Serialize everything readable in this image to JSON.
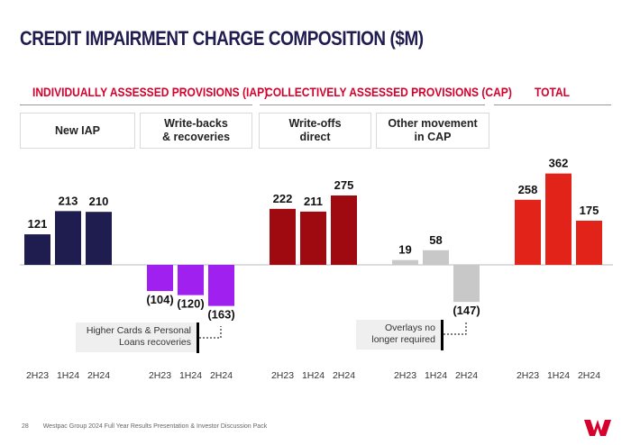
{
  "header": {
    "title": "CREDIT IMPAIRMENT CHARGE COMPOSITION ($M)"
  },
  "sections": [
    {
      "label": "INDIVIDUALLY ASSESSED PROVISIONS (IAP)"
    },
    {
      "label": "COLLECTIVELY ASSESSED PROVISIONS (CAP)"
    },
    {
      "label": "TOTAL"
    }
  ],
  "categories": [
    {
      "label_lines": [
        "New IAP"
      ]
    },
    {
      "label_lines": [
        "Write-backs",
        "& recoveries"
      ]
    },
    {
      "label_lines": [
        "Write-offs",
        "direct"
      ]
    },
    {
      "label_lines": [
        "Other movement",
        "in CAP"
      ]
    }
  ],
  "notes": [
    {
      "lines": [
        "Higher Cards & Personal",
        "Loans recoveries"
      ]
    },
    {
      "lines": [
        "Overlays no",
        "longer required"
      ]
    }
  ],
  "footer": {
    "page_number": "28",
    "text": "Westpac Group 2024 Full Year Results Presentation & Investor Discussion Pack"
  },
  "colors": {
    "title": "#1f1c4f",
    "section": "#d5002b",
    "navy": "#1f1c4f",
    "purple": "#a020f0",
    "darkred": "#9e0a10",
    "grey": "#c8c8c8",
    "red": "#e2231a"
  },
  "chart_data": {
    "type": "bar",
    "title": "CREDIT IMPAIRMENT CHARGE COMPOSITION ($M)",
    "periods": [
      "2H23",
      "1H24",
      "2H24"
    ],
    "ylim": [
      -180,
      380
    ],
    "grid": false,
    "legend": "none",
    "series": [
      {
        "name": "New IAP",
        "group": "IAP",
        "color": "#1f1c4f",
        "values": [
          121,
          213,
          210
        ],
        "labels": [
          "121",
          "213",
          "210"
        ]
      },
      {
        "name": "Write-backs & recoveries",
        "group": "IAP",
        "color": "#a020f0",
        "values": [
          -104,
          -120,
          -163
        ],
        "labels": [
          "(104)",
          "(120)",
          "(163)"
        ]
      },
      {
        "name": "Write-offs direct",
        "group": "CAP",
        "color": "#9e0a10",
        "values": [
          222,
          211,
          275
        ],
        "labels": [
          "222",
          "211",
          "275"
        ]
      },
      {
        "name": "Other movement in CAP",
        "group": "CAP",
        "color": "#c8c8c8",
        "values": [
          19,
          58,
          -147
        ],
        "labels": [
          "19",
          "58",
          "(147)"
        ]
      },
      {
        "name": "Total",
        "group": "TOTAL",
        "color": "#e2231a",
        "values": [
          258,
          362,
          175
        ],
        "labels": [
          "258",
          "362",
          "175"
        ]
      }
    ]
  }
}
